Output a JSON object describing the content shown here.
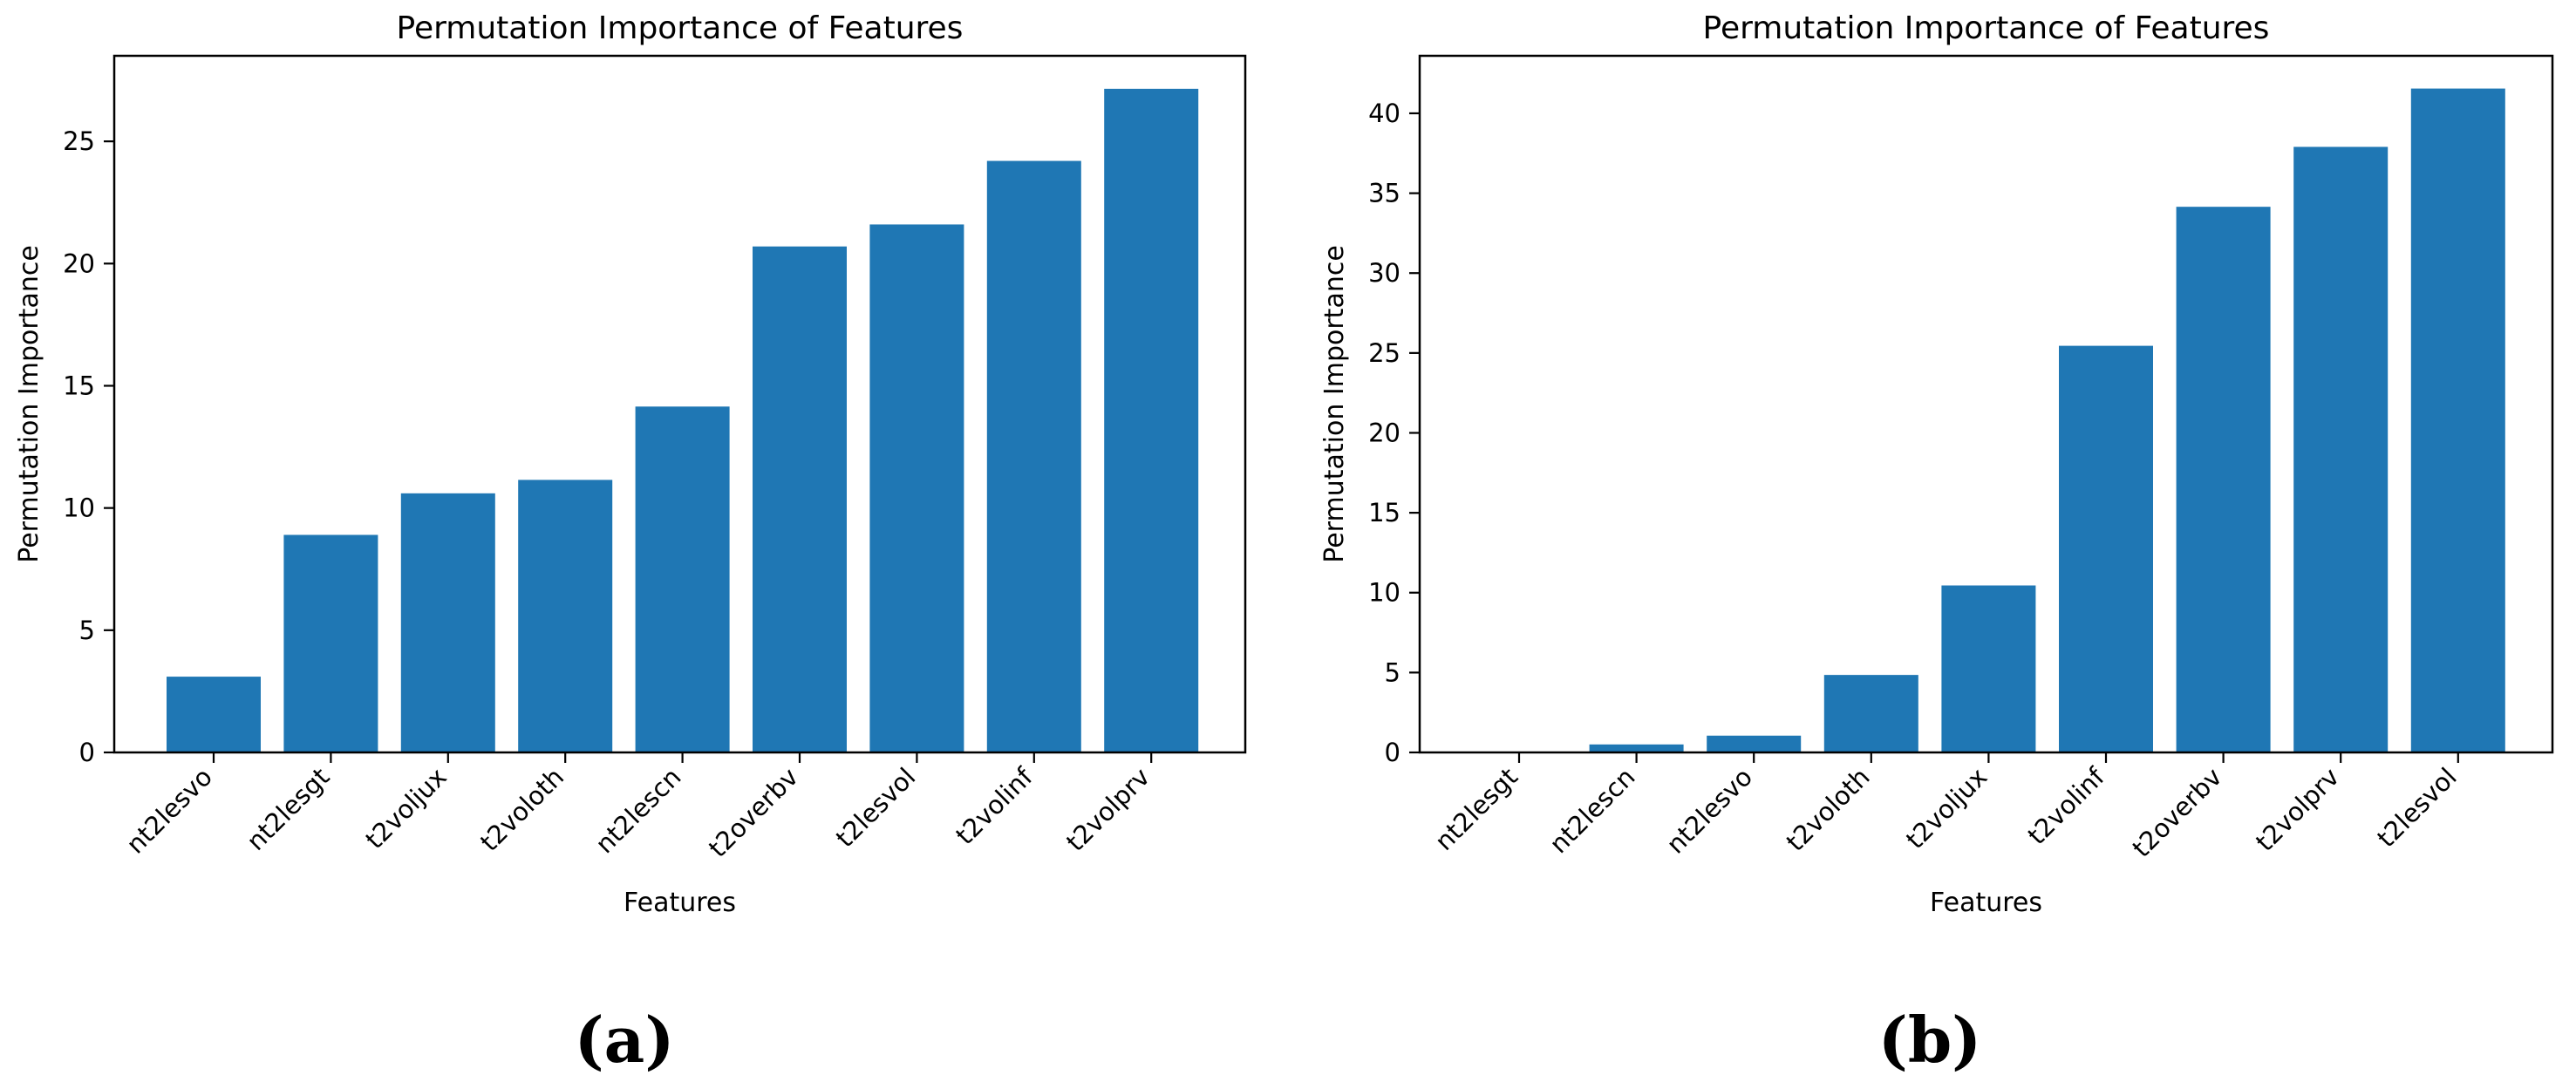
{
  "figure": {
    "panels": [
      {
        "label": "(a)"
      },
      {
        "label": "(b)"
      }
    ]
  },
  "chart_data": [
    {
      "type": "bar",
      "title": "Permutation Importance of Features",
      "xlabel": "Features",
      "ylabel": "Permutation Importance",
      "categories": [
        "nt2lesvo",
        "nt2lesgt",
        "t2voljux",
        "t2voloth",
        "nt2lescn",
        "t2overbv",
        "t2lesvol",
        "t2volinf",
        "t2volprv"
      ],
      "values": [
        3.1,
        8.9,
        10.6,
        11.15,
        14.15,
        20.7,
        21.6,
        24.2,
        27.15
      ],
      "ylim": [
        0,
        28.5
      ],
      "yticks": [
        0,
        5,
        10,
        15,
        20,
        25
      ],
      "bar_color": "#1f77b4",
      "grid": false
    },
    {
      "type": "bar",
      "title": "Permutation Importance of Features",
      "xlabel": "Features",
      "ylabel": "Permutation Importance",
      "categories": [
        "nt2lesgt",
        "nt2lescn",
        "nt2lesvo",
        "t2voloth",
        "t2voljux",
        "t2volinf",
        "t2overbv",
        "t2volprv",
        "t2lesvol"
      ],
      "values": [
        0.0,
        0.5,
        1.05,
        4.85,
        10.45,
        25.45,
        34.15,
        37.9,
        41.55
      ],
      "ylim": [
        0,
        43.6
      ],
      "yticks": [
        0,
        5,
        10,
        15,
        20,
        25,
        30,
        35,
        40
      ],
      "bar_color": "#1f77b4",
      "grid": false
    }
  ]
}
